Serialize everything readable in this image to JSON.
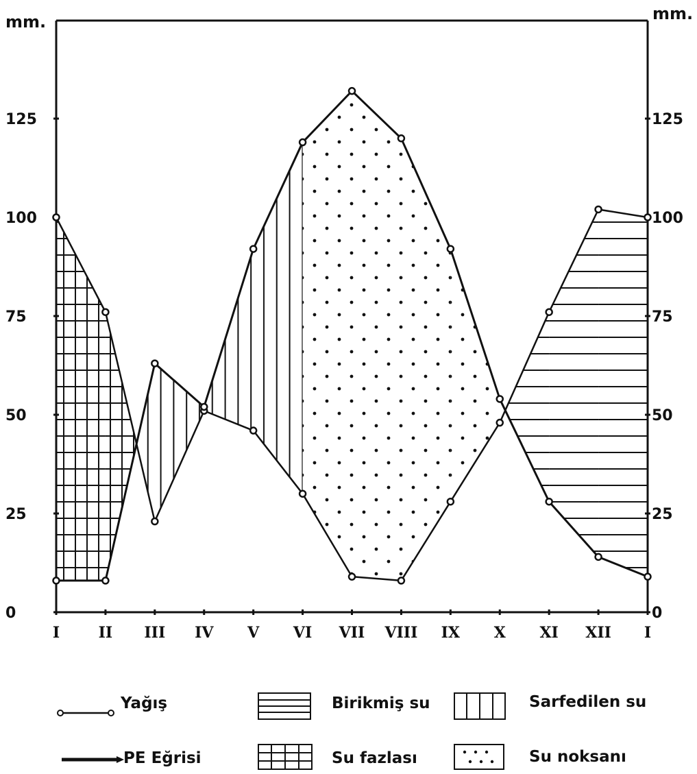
{
  "chart_data": {
    "type": "line",
    "y_unit_left": "mm.",
    "y_unit_right": "mm.",
    "ylim": [
      0,
      140
    ],
    "y_ticks": [
      "0",
      "25",
      "50",
      "75",
      "100",
      "125"
    ],
    "categories": [
      "I",
      "II",
      "III",
      "IV",
      "V",
      "VI",
      "VII",
      "VIII",
      "IX",
      "X",
      "XI",
      "XII",
      "I"
    ],
    "series": [
      {
        "name": "Yağış",
        "values": [
          100,
          76,
          23,
          51,
          46,
          30,
          9,
          8,
          28,
          48,
          76,
          102,
          100
        ]
      },
      {
        "name": "PE Eğrisi",
        "values": [
          8,
          8,
          63,
          52,
          92,
          119,
          132,
          120,
          92,
          54,
          28,
          14,
          9
        ]
      }
    ],
    "legend": [
      {
        "symbol": "line-open-dot",
        "label": "Yağış"
      },
      {
        "symbol": "thick-line",
        "label": "PE Eğrisi"
      },
      {
        "symbol": "horizontal-hatch",
        "label": "Birikmiş su"
      },
      {
        "symbol": "grid-hatch",
        "label": "Su fazlası"
      },
      {
        "symbol": "vertical-hatch",
        "label": "Sarfedilen su"
      },
      {
        "symbol": "dots",
        "label": "Su noksanı"
      }
    ],
    "grid": false,
    "legend_position": "bottom"
  }
}
